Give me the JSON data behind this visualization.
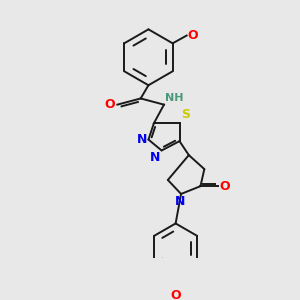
{
  "bg_color": "#e8e8e8",
  "bond_color": "#1a1a1a",
  "atom_colors": {
    "O": "#ff0000",
    "N": "#0000ee",
    "S": "#cccc00",
    "H": "#4a9a7a"
  },
  "figsize": [
    3.0,
    3.0
  ],
  "dpi": 100,
  "lw": 1.4,
  "fs": 7.5
}
